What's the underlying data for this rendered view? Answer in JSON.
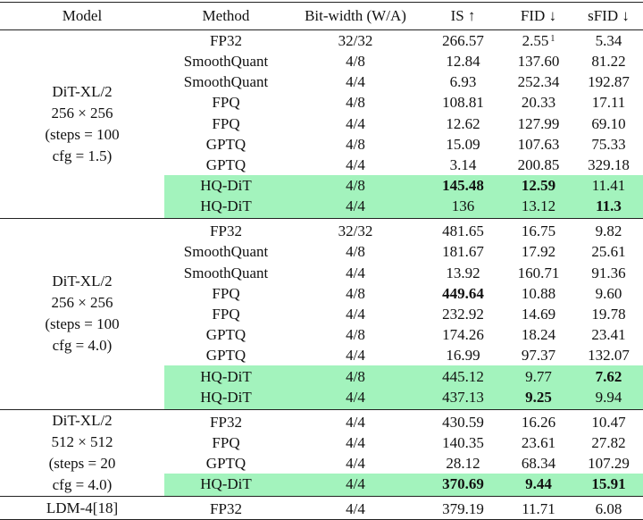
{
  "headers": {
    "model": "Model",
    "method": "Method",
    "bit": "Bit-width (W/A)",
    "is": "IS ↑",
    "fid": "FID ↓",
    "sfid": "sFID ↓"
  },
  "groups": [
    {
      "model_lines": [
        "DiT-XL/2",
        "256 × 256",
        "(steps = 100",
        "cfg = 1.5)"
      ],
      "rows": [
        {
          "method": "FP32",
          "bit": "32/32",
          "is": "266.57",
          "fid": "2.55",
          "fid_note": "1",
          "sfid": "5.34"
        },
        {
          "method": "SmoothQuant",
          "bit": "4/8",
          "is": "12.84",
          "fid": "137.60",
          "sfid": "81.22"
        },
        {
          "method": "SmoothQuant",
          "bit": "4/4",
          "is": "6.93",
          "fid": "252.34",
          "sfid": "192.87"
        },
        {
          "method": "FPQ",
          "bit": "4/8",
          "is": "108.81",
          "fid": "20.33",
          "sfid": "17.11"
        },
        {
          "method": "FPQ",
          "bit": "4/4",
          "is": "12.62",
          "fid": "127.99",
          "sfid": "69.10"
        },
        {
          "method": "GPTQ",
          "bit": "4/8",
          "is": "15.09",
          "fid": "107.63",
          "sfid": "75.33"
        },
        {
          "method": "GPTQ",
          "bit": "4/4",
          "is": "3.14",
          "fid": "200.85",
          "sfid": "329.18"
        },
        {
          "method": "HQ-DiT",
          "bit": "4/8",
          "is": "145.48",
          "fid": "12.59",
          "sfid": "11.41"
        },
        {
          "method": "HQ-DiT",
          "bit": "4/4",
          "is": "136",
          "fid": "13.12",
          "sfid": "11.3"
        }
      ]
    },
    {
      "model_lines": [
        "DiT-XL/2",
        "256 × 256",
        "(steps = 100",
        "cfg = 4.0)"
      ],
      "rows": [
        {
          "method": "FP32",
          "bit": "32/32",
          "is": "481.65",
          "fid": "16.75",
          "sfid": "9.82"
        },
        {
          "method": "SmoothQuant",
          "bit": "4/8",
          "is": "181.67",
          "fid": "17.92",
          "sfid": "25.61"
        },
        {
          "method": "SmoothQuant",
          "bit": "4/4",
          "is": "13.92",
          "fid": "160.71",
          "sfid": "91.36"
        },
        {
          "method": "FPQ",
          "bit": "4/8",
          "is": "449.64",
          "fid": "10.88",
          "sfid": "9.60"
        },
        {
          "method": "FPQ",
          "bit": "4/4",
          "is": "232.92",
          "fid": "14.69",
          "sfid": "19.78"
        },
        {
          "method": "GPTQ",
          "bit": "4/8",
          "is": "174.26",
          "fid": "18.24",
          "sfid": "23.41"
        },
        {
          "method": "GPTQ",
          "bit": "4/4",
          "is": "16.99",
          "fid": "97.37",
          "sfid": "132.07"
        },
        {
          "method": "HQ-DiT",
          "bit": "4/8",
          "is": "445.12",
          "fid": "9.77",
          "sfid": "7.62"
        },
        {
          "method": "HQ-DiT",
          "bit": "4/4",
          "is": "437.13",
          "fid": "9.25",
          "sfid": "9.94"
        }
      ]
    },
    {
      "model_lines": [
        "DiT-XL/2",
        "512 × 512",
        "(steps = 20",
        "cfg = 4.0)"
      ],
      "rows": [
        {
          "method": "FP32",
          "bit": "4/4",
          "is": "430.59",
          "fid": "16.26",
          "sfid": "10.47"
        },
        {
          "method": "FPQ",
          "bit": "4/4",
          "is": "140.35",
          "fid": "23.61",
          "sfid": "27.82"
        },
        {
          "method": "GPTQ",
          "bit": "4/4",
          "is": "28.12",
          "fid": "68.34",
          "sfid": "107.29"
        },
        {
          "method": "HQ-DiT",
          "bit": "4/4",
          "is": "370.69",
          "fid": "9.44",
          "sfid": "15.91"
        }
      ]
    },
    {
      "model_lines": [
        "LDM-4[18]"
      ],
      "rows": [
        {
          "method": "FP32",
          "bit": "4/4",
          "is": "379.19",
          "fid": "11.71",
          "sfid": "6.08"
        }
      ]
    }
  ],
  "highlight_color": "#a3f3bd"
}
